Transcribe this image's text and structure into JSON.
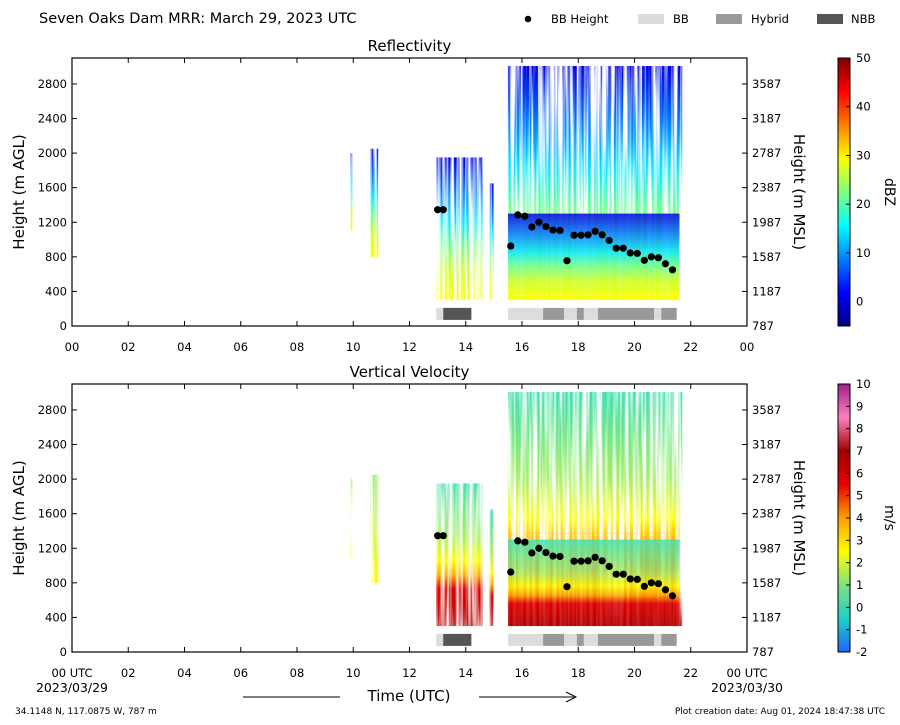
{
  "header": {
    "title": "Seven Oaks Dam MRR:  March 29, 2023 UTC",
    "legend": [
      {
        "label": "BB Height",
        "kind": "dot",
        "color": "#000000"
      },
      {
        "label": "BB",
        "kind": "box",
        "color": "#dcdcdc"
      },
      {
        "label": "Hybrid",
        "kind": "box",
        "color": "#999999"
      },
      {
        "label": "NBB",
        "kind": "box",
        "color": "#555555"
      }
    ]
  },
  "footer": {
    "location": "34.1148 N, 117.0875 W, 787 m",
    "created": "Plot creation date: Aug 01, 2024 18:47:38 UTC",
    "xlabel": "Time (UTC)",
    "start_date": "2023/03/29",
    "end_date": "2023/03/30"
  },
  "chart_data": [
    {
      "type": "heatmap",
      "title": "Reflectivity",
      "ylabel": "Height (m AGL)",
      "ylabel_right": "Height (m MSL)",
      "xlim": [
        0,
        24
      ],
      "ylim": [
        0,
        3100
      ],
      "xticks": [
        "00",
        "02",
        "04",
        "06",
        "08",
        "10",
        "12",
        "14",
        "16",
        "18",
        "20",
        "22",
        "00"
      ],
      "xtick_values": [
        0,
        2,
        4,
        6,
        8,
        10,
        12,
        14,
        16,
        18,
        20,
        22,
        24
      ],
      "yticks": [
        0,
        400,
        800,
        1200,
        1600,
        2000,
        2400,
        2800
      ],
      "yticks_right": [
        "787",
        "1187",
        "1587",
        "1987",
        "2387",
        "2787",
        "3187",
        "3587"
      ],
      "colorbar": {
        "label": "dBZ",
        "min": -5,
        "max": 50,
        "ticks": [
          0,
          10,
          20,
          30,
          40,
          50
        ],
        "colors": [
          "#00007f",
          "#0000ff",
          "#007fff",
          "#00ffff",
          "#7fff7f",
          "#ffff00",
          "#ff7f00",
          "#ff0000",
          "#7f0000"
        ]
      }
    },
    {
      "type": "heatmap",
      "title": "Vertical Velocity",
      "ylabel": "Height (m AGL)",
      "ylabel_right": "Height (m MSL)",
      "xlim": [
        0,
        24
      ],
      "ylim": [
        0,
        3100
      ],
      "xticks": [
        "00 UTC",
        "02",
        "04",
        "06",
        "08",
        "10",
        "12",
        "14",
        "16",
        "18",
        "20",
        "22",
        "00 UTC"
      ],
      "xtick_values": [
        0,
        2,
        4,
        6,
        8,
        10,
        12,
        14,
        16,
        18,
        20,
        22,
        24
      ],
      "yticks": [
        0,
        400,
        800,
        1200,
        1600,
        2000,
        2400,
        2800
      ],
      "yticks_right": [
        "787",
        "1187",
        "1587",
        "1987",
        "2387",
        "2787",
        "3187",
        "3587"
      ],
      "colorbar": {
        "label": "m/s",
        "min": -2,
        "max": 10,
        "ticks": [
          -2,
          -1,
          0,
          1,
          2,
          3,
          4,
          5,
          6,
          7,
          8,
          9,
          10
        ],
        "colors": [
          "#1e64ff",
          "#1ed2c8",
          "#7fe17f",
          "#ffff00",
          "#ffa000",
          "#e60000",
          "#a00000",
          "#ff80c0",
          "#a0208c"
        ]
      }
    }
  ],
  "bright_band": {
    "x": [
      13.0,
      13.2,
      15.6,
      15.85,
      16.1,
      16.35,
      16.6,
      16.85,
      17.1,
      17.35,
      17.6,
      17.85,
      18.1,
      18.35,
      18.6,
      18.85,
      19.1,
      19.35,
      19.6,
      19.85,
      20.1,
      20.35,
      20.6,
      20.85,
      21.1,
      21.35
    ],
    "y": [
      1345,
      1345,
      925,
      1285,
      1270,
      1145,
      1200,
      1150,
      1110,
      1105,
      755,
      1050,
      1050,
      1055,
      1095,
      1055,
      990,
      900,
      900,
      845,
      840,
      760,
      800,
      790,
      720,
      650
    ],
    "segments": [
      {
        "type": "BB",
        "start": 12.95,
        "end": 13.2
      },
      {
        "type": "NBB",
        "start": 13.2,
        "end": 14.2
      },
      {
        "type": "BB",
        "start": 15.5,
        "end": 16.75
      },
      {
        "type": "Hybrid",
        "start": 16.75,
        "end": 17.5
      },
      {
        "type": "BB",
        "start": 17.5,
        "end": 17.95
      },
      {
        "type": "Hybrid",
        "start": 17.95,
        "end": 18.2
      },
      {
        "type": "BB",
        "start": 18.2,
        "end": 18.7
      },
      {
        "type": "Hybrid",
        "start": 18.7,
        "end": 20.7
      },
      {
        "type": "BB",
        "start": 20.7,
        "end": 20.95
      },
      {
        "type": "Hybrid",
        "start": 20.95,
        "end": 21.5
      }
    ]
  }
}
